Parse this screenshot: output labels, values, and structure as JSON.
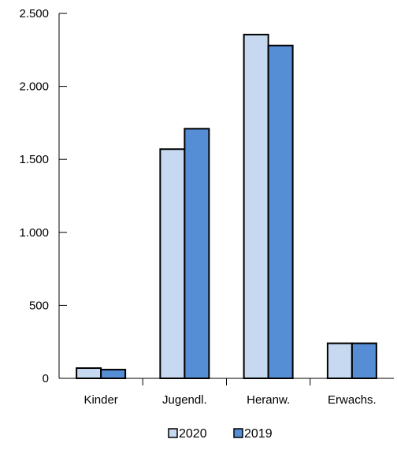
{
  "chart_data": {
    "type": "bar",
    "categories": [
      "Kinder",
      "Jugendl.",
      "Heranw.",
      "Erwachs."
    ],
    "series": [
      {
        "name": "2020",
        "values": [
          70,
          1570,
          2355,
          240
        ],
        "color": "#c6d9f1"
      },
      {
        "name": "2019",
        "values": [
          60,
          1710,
          2280,
          240
        ],
        "color": "#558ed5"
      }
    ],
    "ylim": [
      0,
      2500
    ],
    "yticks": [
      0,
      500,
      1000,
      1500,
      2000,
      2500
    ],
    "ytick_labels": [
      "0",
      "500",
      "1.000",
      "1.500",
      "2.000",
      "2.500"
    ],
    "grid": false,
    "legend": "bottom-center",
    "title": "",
    "xlabel": "",
    "ylabel": ""
  }
}
